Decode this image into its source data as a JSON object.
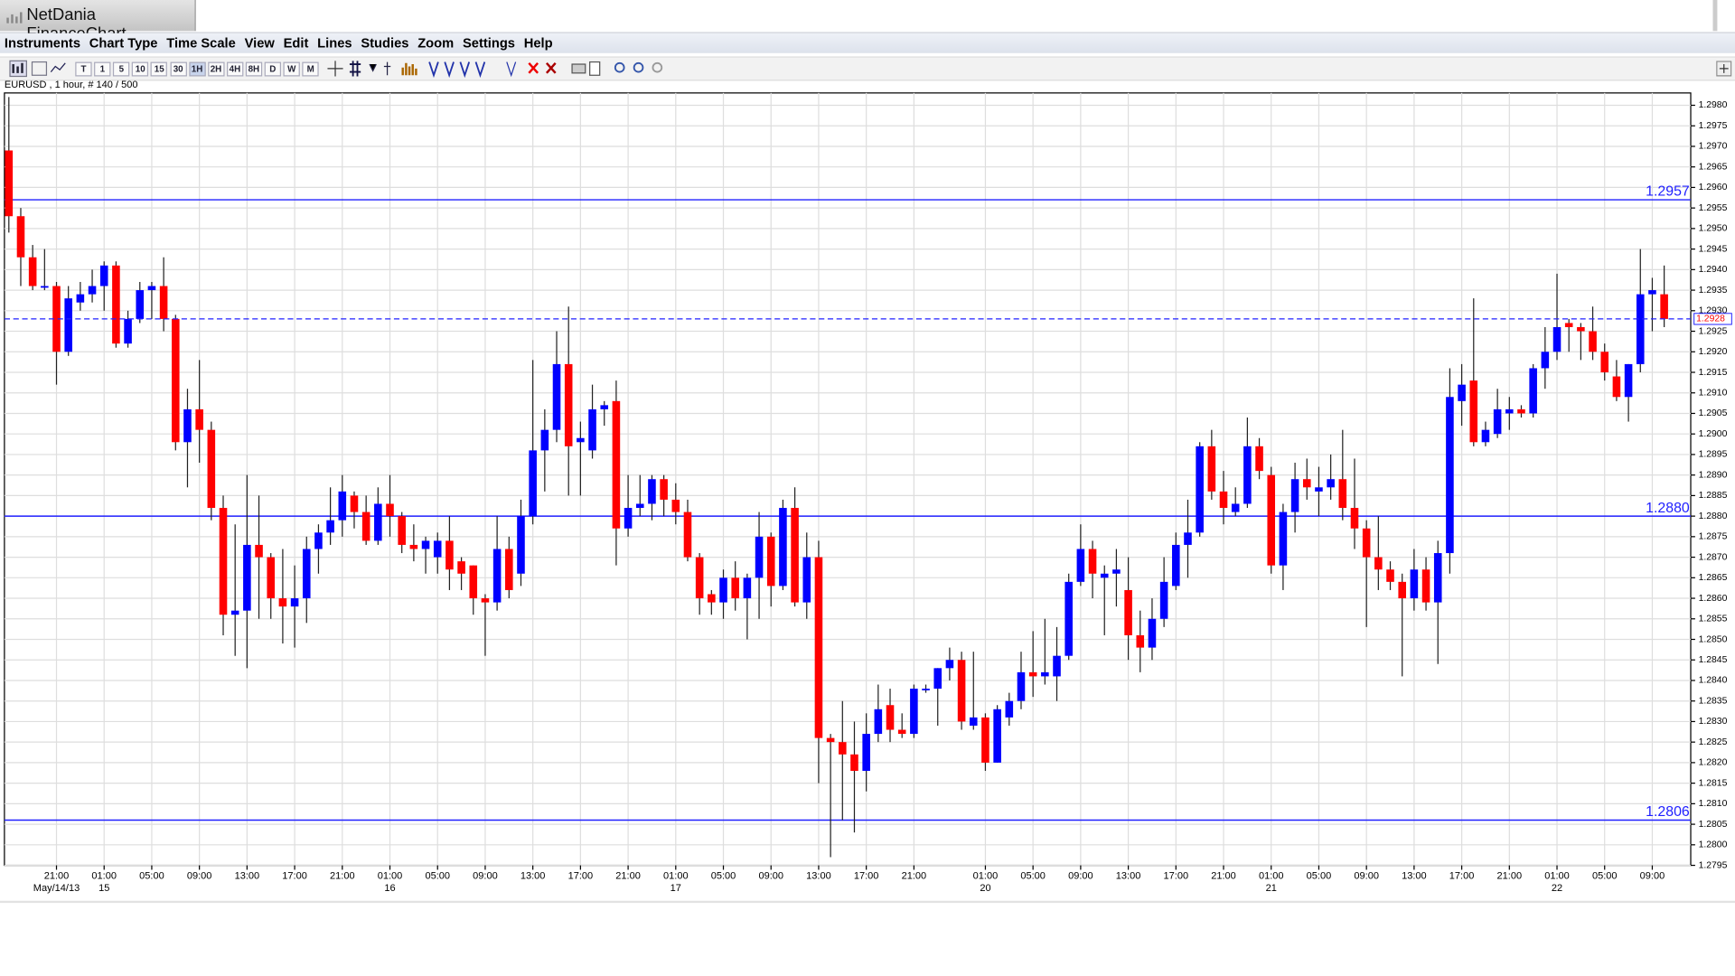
{
  "window_title": "NetDania FinanceChart",
  "menu": [
    "Instruments",
    "Chart Type",
    "Time Scale",
    "View",
    "Edit",
    "Lines",
    "Studies",
    "Zoom",
    "Settings",
    "Help"
  ],
  "toolbar": [
    "T",
    "1",
    "5",
    "10",
    "15",
    "30",
    "1H",
    "2H",
    "4H",
    "8H",
    "D",
    "W",
    "M"
  ],
  "chart_data": {
    "type": "candlestick",
    "title": "EURUSD , 1 hour, # 140 / 500",
    "categories": [
      null,
      null,
      null,
      null,
      "21:00",
      null,
      null,
      null,
      "01:00",
      null,
      null,
      null,
      "05:00",
      null,
      null,
      null,
      "09:00",
      null,
      null,
      null,
      "13:00",
      null,
      null,
      null,
      "17:00",
      null,
      null,
      null,
      "21:00",
      null,
      null,
      null,
      "01:00",
      null,
      null,
      null,
      "05:00",
      null,
      null,
      null,
      "09:00",
      null,
      null,
      null,
      "13:00",
      null,
      null,
      null,
      "17:00",
      null,
      null,
      null,
      "21:00",
      null,
      null,
      null,
      "01:00",
      null,
      null,
      null,
      "05:00",
      null,
      null,
      null,
      "09:00",
      null,
      null,
      null,
      "13:00",
      null,
      null,
      null,
      "17:00",
      null,
      null,
      null,
      "21:00",
      null,
      null,
      null,
      null,
      null,
      "01:00",
      null,
      null,
      null,
      "05:00",
      null,
      null,
      null,
      "09:00",
      null,
      null,
      null,
      "13:00",
      null,
      null,
      null,
      "17:00",
      null,
      null,
      null,
      "21:00",
      null,
      null,
      null,
      "01:00",
      null,
      null,
      null,
      "05:00",
      null,
      null,
      null,
      "09:00",
      null,
      null,
      null,
      "13:00",
      null,
      null,
      null,
      "17:00",
      null,
      null,
      null,
      "21:00",
      null,
      null,
      null,
      "01:00",
      null,
      null,
      null,
      "05:00",
      null,
      null,
      null,
      "09:00",
      null
    ],
    "dates": [
      null,
      null,
      null,
      null,
      "May/14/13",
      null,
      null,
      null,
      "15",
      null,
      null,
      null,
      null,
      null,
      null,
      null,
      null,
      null,
      null,
      null,
      null,
      null,
      null,
      null,
      null,
      null,
      null,
      null,
      null,
      null,
      null,
      null,
      "16",
      null,
      null,
      null,
      null,
      null,
      null,
      null,
      null,
      null,
      null,
      null,
      null,
      null,
      null,
      null,
      null,
      null,
      null,
      null,
      null,
      null,
      null,
      null,
      "17",
      null,
      null,
      null,
      null,
      null,
      null,
      null,
      null,
      null,
      null,
      null,
      null,
      null,
      null,
      null,
      null,
      null,
      null,
      null,
      null,
      null,
      null,
      null,
      null,
      null,
      "20",
      null,
      null,
      null,
      null,
      null,
      null,
      null,
      null,
      null,
      null,
      null,
      null,
      null,
      null,
      null,
      null,
      null,
      null,
      null,
      null,
      null,
      null,
      null,
      "21",
      null,
      null,
      null,
      null,
      null,
      null,
      null,
      null,
      null,
      null,
      null,
      null,
      null,
      null,
      null,
      null,
      null,
      null,
      null,
      null,
      null,
      null,
      null,
      "22",
      null,
      null,
      null,
      null,
      null,
      null,
      null,
      null,
      null
    ],
    "open": [
      1.2969,
      1.2953,
      1.2943,
      1.2936,
      1.2936,
      1.292,
      1.2932,
      1.2934,
      1.2936,
      1.2941,
      1.2922,
      1.2928,
      1.2935,
      1.2936,
      1.2928,
      1.2898,
      1.2906,
      1.2901,
      1.2882,
      1.2856,
      1.2857,
      1.2873,
      1.287,
      1.286,
      1.2858,
      1.286,
      1.2872,
      1.2876,
      1.2879,
      1.2885,
      1.2881,
      1.2874,
      1.2883,
      1.288,
      1.2873,
      1.2872,
      1.287,
      1.2874,
      1.2869,
      1.2868,
      1.286,
      1.2859,
      1.2872,
      1.2866,
      1.288,
      1.2896,
      1.2901,
      1.2917,
      1.2898,
      1.2896,
      1.2906,
      1.2908,
      1.2877,
      1.2882,
      1.2883,
      1.2889,
      1.2884,
      1.2881,
      1.287,
      1.2861,
      1.2859,
      1.2865,
      1.286,
      1.2865,
      1.2875,
      1.2863,
      1.2882,
      1.2859,
      1.287,
      1.2826,
      1.2825,
      1.2822,
      1.2818,
      1.2827,
      1.2834,
      1.2828,
      1.2827,
      1.2838,
      1.2838,
      1.2843,
      1.2845,
      1.2829,
      1.2831,
      1.282,
      1.2831,
      1.2835,
      1.2842,
      1.2841,
      1.2841,
      1.2846,
      1.2864,
      1.2872,
      1.2865,
      1.2866,
      1.2862,
      1.2851,
      1.2848,
      1.2855,
      1.2863,
      1.2873,
      1.2876,
      1.2897,
      1.2886,
      1.2881,
      1.2883,
      1.2897,
      1.289,
      1.2868,
      1.2881,
      1.2889,
      1.2886,
      1.2887,
      1.2889,
      1.2882,
      1.2877,
      1.287,
      1.2867,
      1.2864,
      1.286,
      1.2867,
      1.2859,
      1.2871,
      1.2908,
      1.2913,
      1.2898,
      1.29,
      1.2905,
      1.2906,
      1.2905,
      1.2916,
      1.292,
      1.2927,
      1.2926,
      1.2925,
      1.292,
      1.2914,
      1.2909,
      1.2917,
      1.2934,
      1.2934
    ],
    "high": [
      1.2982,
      1.2955,
      1.2946,
      1.2945,
      1.2937,
      1.2936,
      1.2937,
      1.294,
      1.2942,
      1.2942,
      1.293,
      1.2937,
      1.2937,
      1.2943,
      1.2929,
      1.2911,
      1.2918,
      1.2903,
      1.2885,
      1.2878,
      1.289,
      1.2885,
      1.2871,
      1.2872,
      1.2868,
      1.2875,
      1.2878,
      1.2887,
      1.289,
      1.2886,
      1.2885,
      1.2887,
      1.289,
      1.2881,
      1.2878,
      1.2875,
      1.2876,
      1.288,
      1.287,
      1.2868,
      1.2861,
      1.288,
      1.2875,
      1.2884,
      1.2918,
      1.2906,
      1.2925,
      1.2931,
      1.2903,
      1.2912,
      1.2908,
      1.2913,
      1.289,
      1.289,
      1.289,
      1.289,
      1.2888,
      1.2884,
      1.2871,
      1.2862,
      1.2867,
      1.2869,
      1.2866,
      1.2881,
      1.2876,
      1.2884,
      1.2887,
      1.2876,
      1.2874,
      1.2827,
      1.2835,
      1.283,
      1.2832,
      1.2839,
      1.2838,
      1.2832,
      1.2839,
      1.2839,
      1.2843,
      1.2848,
      1.2847,
      1.2847,
      1.2832,
      1.2834,
      1.2837,
      1.2847,
      1.2852,
      1.2855,
      1.2853,
      1.2866,
      1.2878,
      1.2874,
      1.2868,
      1.2872,
      1.287,
      1.2857,
      1.286,
      1.287,
      1.2876,
      1.2884,
      1.2898,
      1.2901,
      1.2891,
      1.2887,
      1.2904,
      1.2899,
      1.2892,
      1.2883,
      1.2893,
      1.2894,
      1.2892,
      1.2895,
      1.2901,
      1.2894,
      1.2879,
      1.288,
      1.2869,
      1.2866,
      1.2872,
      1.287,
      1.2874,
      1.2916,
      1.2917,
      1.2933,
      1.2903,
      1.2911,
      1.2909,
      1.2907,
      1.2917,
      1.2926,
      1.2939,
      1.2928,
      1.2927,
      1.2931,
      1.2922,
      1.2918,
      1.2917,
      1.2945,
      1.2938,
      1.2941
    ],
    "low": [
      1.2949,
      1.2936,
      1.2935,
      1.2935,
      1.2912,
      1.2919,
      1.293,
      1.2932,
      1.293,
      1.2921,
      1.2921,
      1.2927,
      1.2928,
      1.2925,
      1.2896,
      1.2887,
      1.2893,
      1.2879,
      1.2851,
      1.2846,
      1.2843,
      1.2855,
      1.2855,
      1.2849,
      1.2848,
      1.2854,
      1.2866,
      1.2873,
      1.2875,
      1.2877,
      1.2873,
      1.2873,
      1.2875,
      1.2871,
      1.2869,
      1.2866,
      1.2866,
      1.2862,
      1.2862,
      1.2856,
      1.2846,
      1.2857,
      1.286,
      1.2863,
      1.2878,
      1.2886,
      1.2898,
      1.2885,
      1.2885,
      1.2894,
      1.2902,
      1.2868,
      1.2875,
      1.288,
      1.2879,
      1.288,
      1.2878,
      1.2869,
      1.2856,
      1.2856,
      1.2855,
      1.2857,
      1.285,
      1.2855,
      1.2858,
      1.2862,
      1.2858,
      1.2855,
      1.2815,
      1.2797,
      1.2806,
      1.2803,
      1.2813,
      1.2825,
      1.2825,
      1.2826,
      1.2826,
      1.2837,
      1.2829,
      1.284,
      1.2828,
      1.2828,
      1.2818,
      1.282,
      1.2829,
      1.2833,
      1.2836,
      1.2839,
      1.2835,
      1.2845,
      1.2863,
      1.286,
      1.2851,
      1.2858,
      1.2845,
      1.2842,
      1.2845,
      1.2853,
      1.2862,
      1.2865,
      1.2875,
      1.2884,
      1.2878,
      1.288,
      1.2882,
      1.2889,
      1.2866,
      1.2862,
      1.2876,
      1.2884,
      1.288,
      1.2884,
      1.2879,
      1.2872,
      1.2853,
      1.2862,
      1.2862,
      1.2841,
      1.2857,
      1.2857,
      1.2844,
      1.2866,
      1.2902,
      1.2897,
      1.2897,
      1.2899,
      1.2901,
      1.2904,
      1.2904,
      1.2911,
      1.2918,
      1.292,
      1.2918,
      1.2918,
      1.2913,
      1.2908,
      1.2903,
      1.2915,
      1.2925,
      1.2926
    ],
    "close": [
      1.2953,
      1.2943,
      1.2936,
      1.2936,
      1.292,
      1.2933,
      1.2934,
      1.2936,
      1.2941,
      1.2922,
      1.2928,
      1.2935,
      1.2936,
      1.2928,
      1.2898,
      1.2906,
      1.2901,
      1.2882,
      1.2856,
      1.2857,
      1.2873,
      1.287,
      1.286,
      1.2858,
      1.286,
      1.2872,
      1.2876,
      1.2879,
      1.2886,
      1.2881,
      1.2874,
      1.2883,
      1.288,
      1.2873,
      1.2872,
      1.2874,
      1.2874,
      1.2867,
      1.2866,
      1.286,
      1.2859,
      1.2872,
      1.2862,
      1.288,
      1.2896,
      1.2901,
      1.2917,
      1.2897,
      1.2899,
      1.2906,
      1.2907,
      1.2877,
      1.2882,
      1.2883,
      1.2889,
      1.2884,
      1.2881,
      1.287,
      1.286,
      1.2859,
      1.2865,
      1.286,
      1.2865,
      1.2875,
      1.2863,
      1.2882,
      1.2859,
      1.287,
      1.2826,
      1.2825,
      1.2822,
      1.2818,
      1.2827,
      1.2833,
      1.2828,
      1.2827,
      1.2838,
      1.2838,
      1.2843,
      1.2845,
      1.283,
      1.2831,
      1.282,
      1.2833,
      1.2835,
      1.2842,
      1.2841,
      1.2842,
      1.2846,
      1.2864,
      1.2872,
      1.2866,
      1.2866,
      1.2867,
      1.2851,
      1.2848,
      1.2855,
      1.2864,
      1.2873,
      1.2876,
      1.2897,
      1.2886,
      1.2882,
      1.2883,
      1.2897,
      1.2891,
      1.2868,
      1.2881,
      1.2889,
      1.2887,
      1.2887,
      1.2889,
      1.2882,
      1.2877,
      1.287,
      1.2867,
      1.2864,
      1.286,
      1.2867,
      1.2859,
      1.2871,
      1.2909,
      1.2912,
      1.2898,
      1.2901,
      1.2906,
      1.2906,
      1.2905,
      1.2916,
      1.292,
      1.2926,
      1.2926,
      1.2925,
      1.292,
      1.2915,
      1.2909,
      1.2917,
      1.2934,
      1.2935,
      1.2928
    ],
    "up_color": "#0000ff",
    "down_color": "#ff0000",
    "line_color": "#2020ff",
    "grid": true,
    "ylim": [
      1.2795,
      1.2983
    ],
    "yticks": [
      1.2795,
      {
        "value": 1.28,
        "label": "1.2800"
      },
      1.2805,
      {
        "value": 1.281,
        "label": "1.2810"
      },
      1.2815,
      {
        "value": 1.282,
        "label": "1.2820"
      },
      1.2825,
      {
        "value": 1.283,
        "label": "1.2830"
      },
      1.2835,
      {
        "value": 1.284,
        "label": "1.2840"
      },
      1.2845,
      {
        "value": 1.285,
        "label": "1.2850"
      },
      1.2855,
      {
        "value": 1.286,
        "label": "1.2860"
      },
      1.2865,
      {
        "value": 1.287,
        "label": "1.2870"
      },
      1.2875,
      {
        "value": 1.288,
        "label": "1.2880"
      },
      1.2885,
      {
        "value": 1.289,
        "label": "1.2890"
      },
      1.2895,
      {
        "value": 1.29,
        "label": "1.2900"
      },
      1.2905,
      {
        "value": 1.291,
        "label": "1.2910"
      },
      1.2915,
      {
        "value": 1.292,
        "label": "1.2920"
      },
      1.2925,
      {
        "value": 1.293,
        "label": "1.2930"
      },
      1.2935,
      {
        "value": 1.294,
        "label": "1.2940"
      },
      1.2945,
      {
        "value": 1.295,
        "label": "1.2950"
      },
      1.2955,
      {
        "value": 1.296,
        "label": "1.2960"
      },
      1.2965,
      {
        "value": 1.297,
        "label": "1.2970"
      },
      1.2975,
      {
        "value": 1.298,
        "label": "1.2980"
      }
    ],
    "horizontal_lines": [
      1.2957,
      {
        "value": 1.288,
        "label": "1.2880"
      },
      1.2806
    ],
    "last_price": 1.2928
  }
}
